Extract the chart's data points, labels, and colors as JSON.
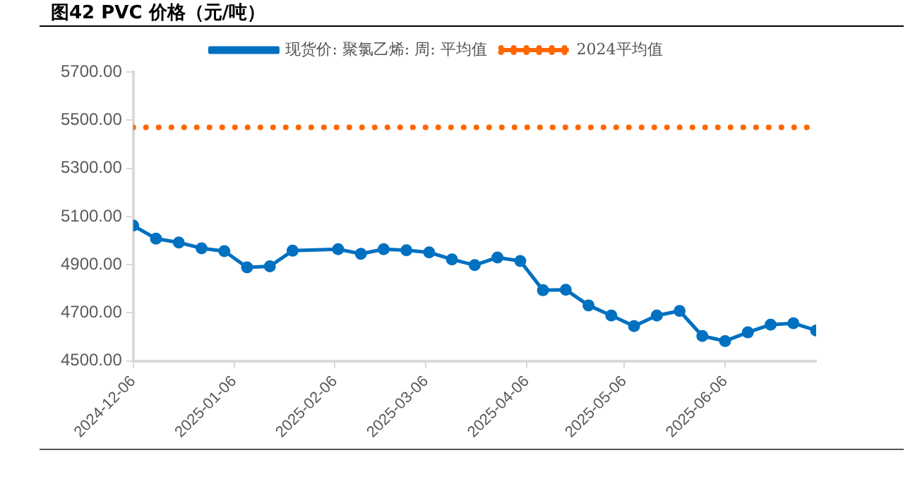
{
  "chart_data": {
    "type": "line",
    "title": "图42 PVC 价格（元/吨）",
    "x": [
      "2024-12-06",
      "2024-12-13",
      "2024-12-20",
      "2024-12-27",
      "2025-01-03",
      "2025-01-10",
      "2025-01-17",
      "2025-01-24",
      "2025-02-07",
      "2025-02-14",
      "2025-02-21",
      "2025-02-28",
      "2025-03-07",
      "2025-03-14",
      "2025-03-21",
      "2025-03-28",
      "2025-04-04",
      "2025-04-11",
      "2025-04-18",
      "2025-04-25",
      "2025-05-02",
      "2025-05-09",
      "2025-05-16",
      "2025-05-23",
      "2025-05-30",
      "2025-06-06",
      "2025-06-13",
      "2025-06-20",
      "2025-06-27",
      "2025-07-04"
    ],
    "series": [
      {
        "name": "现货价: 聚氯乙烯: 周: 平均值",
        "color": "#0070c0",
        "marker": "circle",
        "line_style": "solid",
        "values": [
          5062,
          5008,
          4992,
          4968,
          4956,
          4889,
          4893,
          4958,
          4964,
          4945,
          4964,
          4960,
          4951,
          4922,
          4898,
          4930,
          4915,
          4794,
          4796,
          4731,
          4689,
          4645,
          4689,
          4708,
          4604,
          4583,
          4619,
          4651,
          4657,
          4627
        ]
      },
      {
        "name": "2024平均值",
        "color": "#ff6600",
        "marker": "none",
        "line_style": "dotted",
        "values": [
          5470,
          5470,
          5470,
          5470,
          5470,
          5470,
          5470,
          5470,
          5470,
          5470,
          5470,
          5470,
          5470,
          5470,
          5470,
          5470,
          5470,
          5470,
          5470,
          5470,
          5470,
          5470,
          5470,
          5470,
          5470,
          5470,
          5470,
          5470,
          5470,
          5470
        ]
      }
    ],
    "xlim": [
      "2024-12-06",
      "2025-07-04"
    ],
    "xticks": [
      "2024-12-06",
      "2025-01-06",
      "2025-02-06",
      "2025-03-06",
      "2025-04-06",
      "2025-05-06",
      "2025-06-06"
    ],
    "ylim": [
      4500,
      5700
    ],
    "yticks": [
      {
        "value": 4500,
        "label": "4500.00"
      },
      {
        "value": 4700,
        "label": "4700.00"
      },
      {
        "value": 4900,
        "label": "4900.00"
      },
      {
        "value": 5100,
        "label": "5100.00"
      },
      {
        "value": 5300,
        "label": "5300.00"
      },
      {
        "value": 5500,
        "label": "5500.00"
      },
      {
        "value": 5700,
        "label": "5700.00"
      }
    ],
    "grid": false,
    "legend": "top"
  }
}
